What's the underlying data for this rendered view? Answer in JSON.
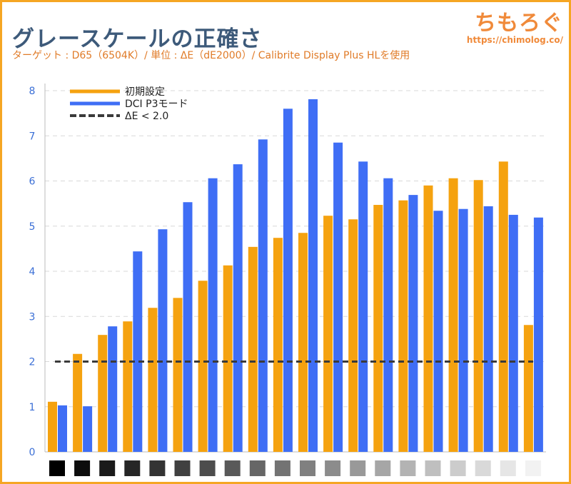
{
  "header": {
    "title": "グレースケールの正確さ",
    "subtitle": "ターゲット : D65（6504K）/ 単位 : ΔE（dE2000）/ Calibrite Display Plus HLを使用",
    "logo_text": "ちもろぐ",
    "logo_url": "https://chimolog.co/"
  },
  "colors": {
    "orange": "#f5a20f",
    "blue": "#3f6ef5",
    "reference": "#3a3a3a",
    "axis_labels": "#3b6fd6",
    "frame": "#f5a623"
  },
  "chart_data": {
    "type": "bar",
    "title": "グレースケールの正確さ",
    "ylim": [
      0,
      8
    ],
    "yticks": [
      0,
      1,
      2,
      3,
      4,
      5,
      6,
      7,
      8
    ],
    "grid": "horizontal dashed",
    "legend_placement": "top-left",
    "categories_note_swatches": [
      "#000000",
      "#0d0d0d",
      "#1a1a1a",
      "#262626",
      "#333333",
      "#404040",
      "#4d4d4d",
      "#595959",
      "#666666",
      "#737373",
      "#808080",
      "#8c8c8c",
      "#999999",
      "#a6a6a6",
      "#b3b3b3",
      "#bfbfbf",
      "#cccccc",
      "#d9d9d9",
      "#e6e6e6",
      "#f2f2f2"
    ],
    "series": [
      {
        "name": "初期設定",
        "color": "#f5a20f",
        "values": [
          1.11,
          2.17,
          2.59,
          2.89,
          3.19,
          3.41,
          3.79,
          4.13,
          4.54,
          4.74,
          4.85,
          5.23,
          5.15,
          5.47,
          5.57,
          5.9,
          6.06,
          6.02,
          6.43,
          2.81
        ]
      },
      {
        "name": "DCI P3モード",
        "color": "#3f6ef5",
        "values": [
          1.03,
          1.01,
          2.78,
          4.44,
          4.93,
          5.53,
          6.06,
          6.37,
          6.92,
          7.6,
          7.81,
          6.85,
          6.43,
          6.06,
          5.69,
          5.34,
          5.38,
          5.44,
          5.25,
          5.19
        ]
      }
    ],
    "reference_line": {
      "name": "ΔE < 2.0",
      "value": 2.0,
      "style": "dashed"
    }
  }
}
